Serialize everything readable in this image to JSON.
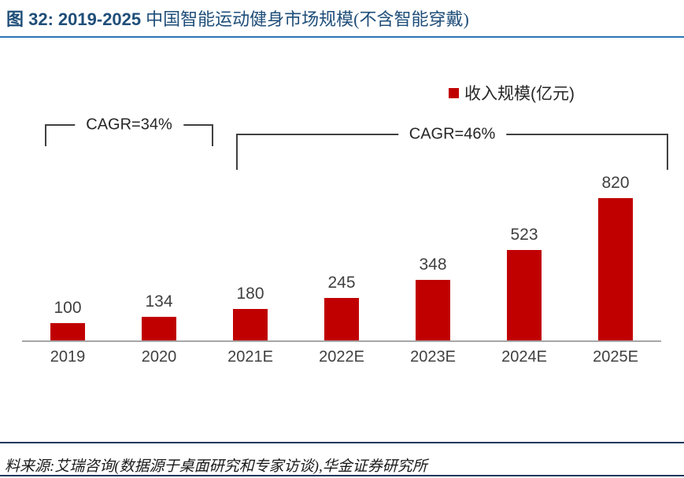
{
  "title": {
    "prefix": "图 32:",
    "range": "2019-2025",
    "rest": "中国智能运动健身市场规模(不含智能穿戴)"
  },
  "legend": {
    "label": "收入规模(亿元)"
  },
  "annotations": {
    "cagr_left": "CAGR=34%",
    "cagr_right": "CAGR=46%"
  },
  "footer": {
    "source": "料来源:艾瑞咨询(数据源于桌面研究和专家访谈),华金证券研究所"
  },
  "chart_data": {
    "type": "bar",
    "title": "2019-2025 中国智能运动健身市场规模(不含智能穿戴)",
    "categories": [
      "2019",
      "2020",
      "2021E",
      "2022E",
      "2023E",
      "2024E",
      "2025E"
    ],
    "values": [
      100,
      134,
      180,
      245,
      348,
      523,
      820
    ],
    "series_name": "收入规模(亿元)",
    "ylim": [
      0,
      900
    ],
    "grid": false,
    "legend_position": "top-right",
    "bar_color": "#C00000",
    "annotations": [
      {
        "label": "CAGR=34%",
        "span": [
          "2019",
          "2020"
        ]
      },
      {
        "label": "CAGR=46%",
        "span": [
          "2021E",
          "2025E"
        ]
      }
    ]
  },
  "colors": {
    "bar": "#C00000",
    "title_text": "#1F4E79",
    "rule_blue": "#2E74B5",
    "rule_navy": "#17375E",
    "axis_gray": "#A6A6A6",
    "label_text": "#404040"
  }
}
